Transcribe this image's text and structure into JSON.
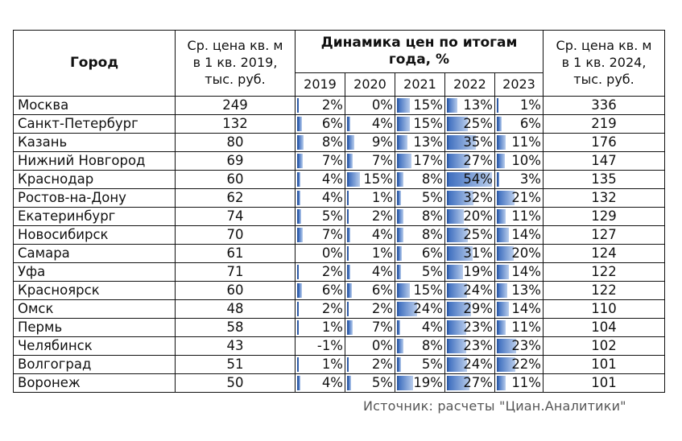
{
  "table": {
    "headers": {
      "city": "Город",
      "avg2019": [
        "Ср. цена кв. м",
        "в 1 кв. 2019,",
        "тыс. руб."
      ],
      "dynamics": [
        "Динамика цен по итогам",
        "года, %"
      ],
      "years": [
        "2019",
        "2020",
        "2021",
        "2022",
        "2023"
      ],
      "avg2024": [
        "Ср. цена кв. м",
        "в 1 кв. 2024,",
        "тыс. руб."
      ]
    },
    "rows": [
      {
        "city": "Москва",
        "p2019": "249",
        "dyn": [
          "2%",
          "0%",
          "15%",
          "13%",
          "1%"
        ],
        "p2024": "336"
      },
      {
        "city": "Санкт-Петербург",
        "p2019": "132",
        "dyn": [
          "6%",
          "4%",
          "15%",
          "25%",
          "6%"
        ],
        "p2024": "219"
      },
      {
        "city": "Казань",
        "p2019": "80",
        "dyn": [
          "8%",
          "9%",
          "13%",
          "35%",
          "11%"
        ],
        "p2024": "176"
      },
      {
        "city": "Нижний Новгород",
        "p2019": "69",
        "dyn": [
          "7%",
          "7%",
          "17%",
          "27%",
          "10%"
        ],
        "p2024": "147"
      },
      {
        "city": "Краснодар",
        "p2019": "60",
        "dyn": [
          "4%",
          "15%",
          "8%",
          "54%",
          "3%"
        ],
        "p2024": "135"
      },
      {
        "city": "Ростов-на-Дону",
        "p2019": "62",
        "dyn": [
          "4%",
          "1%",
          "5%",
          "32%",
          "21%"
        ],
        "p2024": "132"
      },
      {
        "city": "Екатеринбург",
        "p2019": "74",
        "dyn": [
          "5%",
          "2%",
          "8%",
          "20%",
          "11%"
        ],
        "p2024": "129"
      },
      {
        "city": "Новосибирск",
        "p2019": "70",
        "dyn": [
          "7%",
          "4%",
          "8%",
          "25%",
          "14%"
        ],
        "p2024": "127"
      },
      {
        "city": "Самара",
        "p2019": "61",
        "dyn": [
          "0%",
          "1%",
          "6%",
          "31%",
          "20%"
        ],
        "p2024": "124"
      },
      {
        "city": "Уфа",
        "p2019": "71",
        "dyn": [
          "2%",
          "4%",
          "5%",
          "19%",
          "14%"
        ],
        "p2024": "122"
      },
      {
        "city": "Красноярск",
        "p2019": "60",
        "dyn": [
          "6%",
          "6%",
          "15%",
          "24%",
          "13%"
        ],
        "p2024": "122"
      },
      {
        "city": "Омск",
        "p2019": "48",
        "dyn": [
          "2%",
          "2%",
          "24%",
          "29%",
          "14%"
        ],
        "p2024": "110"
      },
      {
        "city": "Пермь",
        "p2019": "58",
        "dyn": [
          "1%",
          "7%",
          "4%",
          "23%",
          "11%"
        ],
        "p2024": "104"
      },
      {
        "city": "Челябинск",
        "p2019": "43",
        "dyn": [
          "-1%",
          "0%",
          "8%",
          "23%",
          "23%"
        ],
        "p2024": "102"
      },
      {
        "city": "Волгоград",
        "p2019": "51",
        "dyn": [
          "1%",
          "2%",
          "5%",
          "24%",
          "22%"
        ],
        "p2024": "101"
      },
      {
        "city": "Воронеж",
        "p2019": "50",
        "dyn": [
          "4%",
          "5%",
          "19%",
          "27%",
          "11%"
        ],
        "p2024": "101"
      }
    ]
  },
  "source": "Источник: расчеты \"Циан.Аналитики\"",
  "colors": {
    "bar_dark": "#3f6fbf",
    "bar_light": "#b9cdec"
  }
}
